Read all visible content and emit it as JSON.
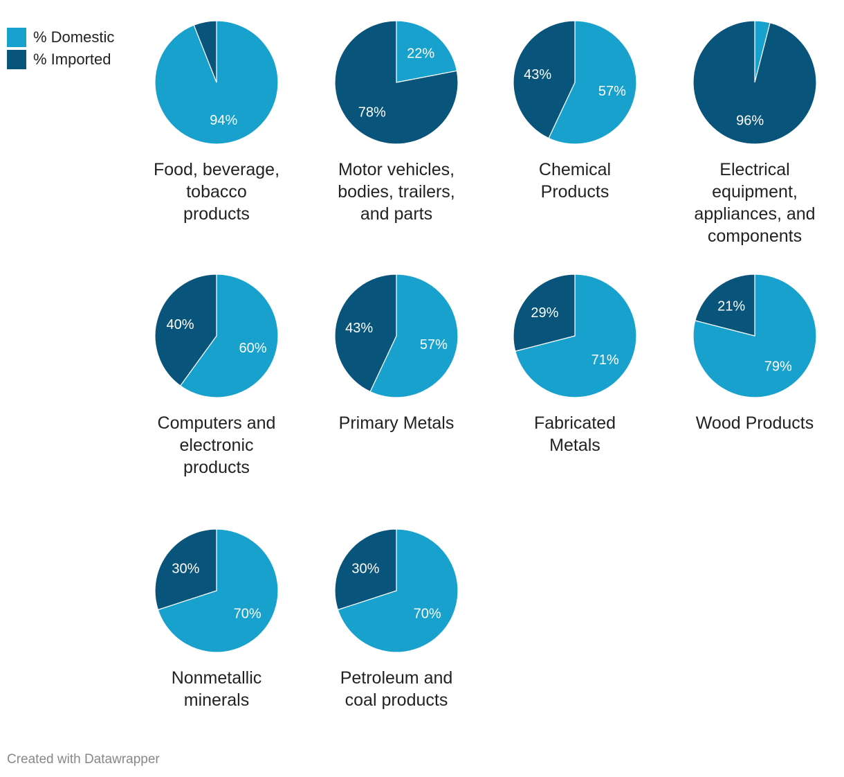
{
  "legend": {
    "domestic_label": "% Domestic",
    "imported_label": "% Imported"
  },
  "colors": {
    "domestic": "#18a1cd",
    "imported": "#09547a",
    "label_text": "#ffffff"
  },
  "chart_data": {
    "type": "pie",
    "series_names": [
      "% Domestic",
      "% Imported"
    ],
    "pies": [
      {
        "title": "Food, beverage, tobacco products",
        "title_lines": [
          "Food, beverage,",
          "tobacco",
          "products"
        ],
        "domestic": 94,
        "imported": 6,
        "labels": [
          "94%",
          ""
        ]
      },
      {
        "title": "Motor vehicles, bodies, trailers, and parts",
        "title_lines": [
          "Motor vehicles,",
          "bodies, trailers,",
          "and parts"
        ],
        "domestic": 22,
        "imported": 78,
        "labels": [
          "22%",
          "78%"
        ]
      },
      {
        "title": "Chemical Products",
        "title_lines": [
          "Chemical",
          "Products"
        ],
        "domestic": 57,
        "imported": 43,
        "labels": [
          "57%",
          "43%"
        ]
      },
      {
        "title": "Electrical equipment, appliances, and components",
        "title_lines": [
          "Electrical",
          "equipment,",
          "appliances, and",
          "components"
        ],
        "domestic": 4,
        "imported": 96,
        "labels": [
          "",
          "96%"
        ]
      },
      {
        "title": "Computers and electronic products",
        "title_lines": [
          "Computers and",
          "electronic",
          "products"
        ],
        "domestic": 60,
        "imported": 40,
        "labels": [
          "60%",
          "40%"
        ]
      },
      {
        "title": "Primary Metals",
        "title_lines": [
          "Primary Metals"
        ],
        "domestic": 57,
        "imported": 43,
        "labels": [
          "57%",
          "43%"
        ]
      },
      {
        "title": "Fabricated Metals",
        "title_lines": [
          "Fabricated",
          "Metals"
        ],
        "domestic": 71,
        "imported": 29,
        "labels": [
          "71%",
          "29%"
        ]
      },
      {
        "title": "Wood Products",
        "title_lines": [
          "Wood Products"
        ],
        "domestic": 79,
        "imported": 21,
        "labels": [
          "79%",
          "21%"
        ]
      },
      {
        "title": "Nonmetallic minerals",
        "title_lines": [
          "Nonmetallic",
          "minerals"
        ],
        "domestic": 70,
        "imported": 30,
        "labels": [
          "70%",
          "30%"
        ]
      },
      {
        "title": "Petroleum and coal products",
        "title_lines": [
          "Petroleum and",
          "coal products"
        ],
        "domestic": 70,
        "imported": 30,
        "labels": [
          "70%",
          "30%"
        ]
      }
    ]
  },
  "footer": {
    "credit": "Created with Datawrapper"
  }
}
